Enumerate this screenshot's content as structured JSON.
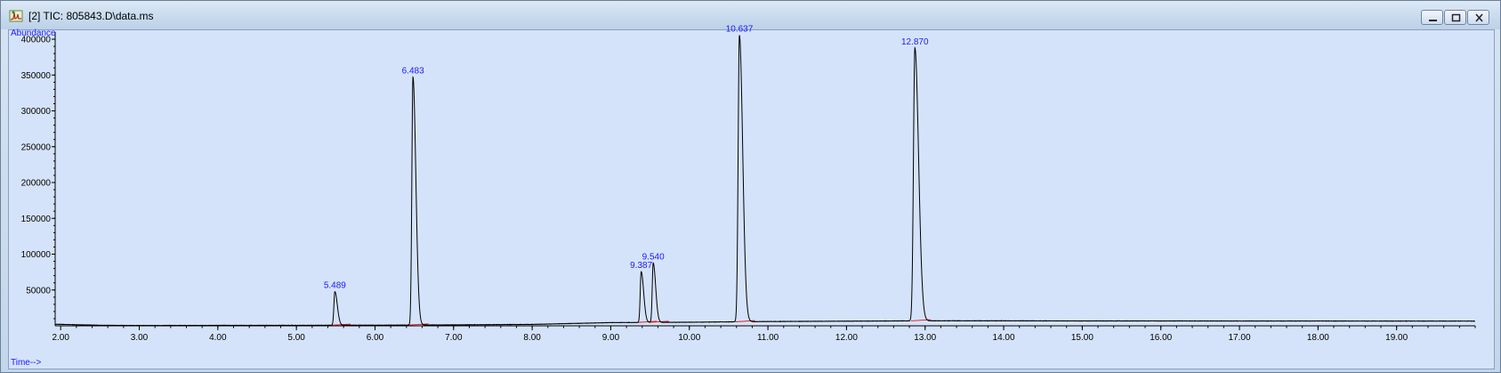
{
  "window": {
    "title": "[2] TIC: 805843.D\\data.ms",
    "icon": "chromatogram-app-icon"
  },
  "colors": {
    "plot_background": "#d5e3fa",
    "trace": "#000000",
    "baseline": "#e02020",
    "labels": "#1a1aff"
  },
  "chart_data": {
    "type": "line",
    "title": "",
    "xlabel": "Time-->",
    "ylabel": "Abundance",
    "xlim": [
      1.93,
      20.0
    ],
    "ylim": [
      0,
      410000
    ],
    "grid": false,
    "x_ticks": [
      "2.00",
      "3.00",
      "4.00",
      "5.00",
      "6.00",
      "7.00",
      "8.00",
      "9.00",
      "10.00",
      "11.00",
      "12.00",
      "13.00",
      "14.00",
      "15.00",
      "16.00",
      "17.00",
      "18.00",
      "19.00"
    ],
    "x_tick_values": [
      2,
      3,
      4,
      5,
      6,
      7,
      8,
      9,
      10,
      11,
      12,
      13,
      14,
      15,
      16,
      17,
      18,
      19
    ],
    "y_ticks": [
      "400000",
      "350000",
      "300000",
      "250000",
      "200000",
      "150000",
      "100000",
      "50000"
    ],
    "y_tick_values": [
      400000,
      350000,
      300000,
      250000,
      200000,
      150000,
      100000,
      50000
    ],
    "peaks": [
      {
        "label": "5.489",
        "rt": 5.489,
        "height": 47000,
        "width": 0.012
      },
      {
        "label": "6.483",
        "rt": 6.483,
        "height": 346000,
        "width": 0.014
      },
      {
        "label": "9.387",
        "rt": 9.387,
        "height": 71000,
        "width": 0.012
      },
      {
        "label": "9.540",
        "rt": 9.54,
        "height": 83000,
        "width": 0.012
      },
      {
        "label": "10.637",
        "rt": 10.637,
        "height": 400000,
        "width": 0.016
      },
      {
        "label": "12.870",
        "rt": 12.87,
        "height": 381000,
        "width": 0.018
      }
    ],
    "baseline": [
      [
        1.93,
        2200
      ],
      [
        2.5,
        800
      ],
      [
        3.0,
        500
      ],
      [
        4.0,
        600
      ],
      [
        5.0,
        700
      ],
      [
        6.0,
        900
      ],
      [
        7.0,
        1300
      ],
      [
        8.0,
        2000
      ],
      [
        9.0,
        4500
      ],
      [
        10.0,
        5000
      ],
      [
        11.0,
        6000
      ],
      [
        12.0,
        6500
      ],
      [
        13.0,
        7000
      ],
      [
        14.0,
        7000
      ],
      [
        15.0,
        6800
      ],
      [
        16.0,
        6800
      ],
      [
        17.0,
        6700
      ],
      [
        18.0,
        6700
      ],
      [
        19.0,
        6600
      ],
      [
        20.0,
        6600
      ]
    ]
  }
}
